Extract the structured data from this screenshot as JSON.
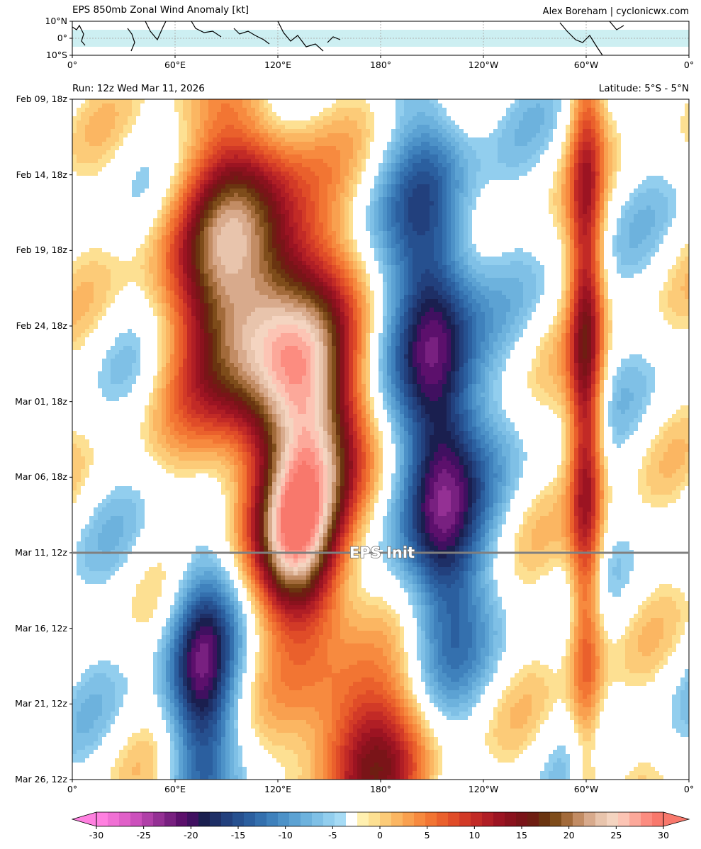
{
  "header": {
    "title": "EPS 850mb Zonal Wind Anomaly [kt]",
    "credit": "Alex Boreham | cyclonicwx.com",
    "run": "Run: 12z Wed Mar 11, 2026",
    "latitude": "Latitude: 5°S - 5°N"
  },
  "chart_data": [
    {
      "type": "map",
      "name": "latitude-band-map",
      "x_ticks": [
        "0°",
        "60°E",
        "120°E",
        "180°",
        "120°W",
        "60°W",
        "0°"
      ],
      "x_values": [
        0,
        60,
        120,
        180,
        240,
        300,
        360
      ],
      "y_ticks": [
        "10°N",
        "0°",
        "10°S"
      ],
      "y_values": [
        10,
        0,
        -10
      ],
      "highlight_band_lat": [
        -5,
        5
      ],
      "highlight_color": "#cdeff2"
    },
    {
      "type": "heatmap",
      "name": "hovmoller",
      "x_ticks": [
        "0°",
        "60°E",
        "120°E",
        "180°",
        "120°W",
        "60°W",
        "0°"
      ],
      "x_values": [
        0,
        60,
        120,
        180,
        240,
        300,
        360
      ],
      "y_ticks": [
        "Feb 09, 18z",
        "Feb 14, 18z",
        "Feb 19, 18z",
        "Feb 24, 18z",
        "Mar 01, 18z",
        "Mar 06, 18z",
        "Mar 11, 12z",
        "Mar 16, 12z",
        "Mar 21, 12z",
        "Mar 26, 12z"
      ],
      "init_line": {
        "time": "Mar 11, 12z",
        "label": "EPS Init",
        "color": "#808080"
      },
      "anomalies": [
        {
          "lon": 100,
          "time_days": 12,
          "value": 20,
          "spread_lon": 40,
          "spread_days": 10
        },
        {
          "lon": 140,
          "time_days": 22,
          "value": 18,
          "spread_lon": 35,
          "spread_days": 9
        },
        {
          "lon": 130,
          "time_days": 30,
          "value": 14,
          "spread_lon": 25,
          "spread_days": 5
        },
        {
          "lon": 210,
          "time_days": 14,
          "value": -12,
          "spread_lon": 25,
          "spread_days": 12
        },
        {
          "lon": 215,
          "time_days": 28,
          "value": -11,
          "spread_lon": 25,
          "spread_days": 10
        },
        {
          "lon": 300,
          "time_days": 20,
          "value": 12,
          "spread_lon": 10,
          "spread_days": 25
        },
        {
          "lon": 75,
          "time_days": 38,
          "value": -12,
          "spread_lon": 20,
          "spread_days": 8
        },
        {
          "lon": 170,
          "time_days": 43,
          "value": 13,
          "spread_lon": 35,
          "spread_days": 6
        }
      ]
    },
    {
      "type": "colorbar",
      "name": "anomaly-colorbar",
      "tick_labels": [
        "-30",
        "-25",
        "-20",
        "-15",
        "-10",
        "-5",
        "0",
        "5",
        "10",
        "15",
        "20",
        "25",
        "30"
      ],
      "tick_values": [
        -30,
        -25,
        -20,
        -15,
        -10,
        -5,
        0,
        5,
        10,
        15,
        20,
        25,
        30
      ],
      "colors": [
        "#ff80e0",
        "#f070d4",
        "#e060c8",
        "#cc50bc",
        "#b040a8",
        "#943094",
        "#782080",
        "#5c106c",
        "#401060",
        "#1a1f4f",
        "#1e2f66",
        "#22407d",
        "#26508f",
        "#2b5f9f",
        "#3470ae",
        "#3f81bc",
        "#4d92c8",
        "#5ca2d3",
        "#6db2dd",
        "#7fc0e6",
        "#92ceee",
        "#a6dbf5",
        "#ffffff",
        "#fff0b0",
        "#fde092",
        "#fccb78",
        "#fbb662",
        "#f9a04f",
        "#f78a3f",
        "#f27533",
        "#ea602c",
        "#e04c28",
        "#d23a27",
        "#c22a26",
        "#b01e25",
        "#9c1422",
        "#8a121d",
        "#7a1418",
        "#6e1e12",
        "#6a3410",
        "#7e4c1a",
        "#a26a3a",
        "#c28c64",
        "#d8aa8c",
        "#e8c4ac",
        "#f4d4c0",
        "#fcc4b4",
        "#fca89a",
        "#fc8c80",
        "#f8786c"
      ]
    }
  ]
}
